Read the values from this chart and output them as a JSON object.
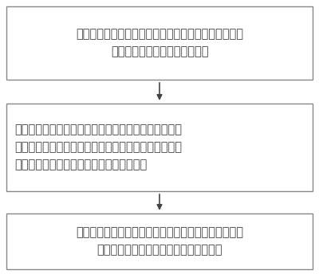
{
  "box1_lines": [
    "利用热路法计算稳态下电缆导体温度的计算值与电缆各",
    "层结构材料的导热系数的关系式"
  ],
  "box2_lines": [
    "利用灵敏度原理计算电缆各层结构材料的导热系数与相",
    "应的灵敏度的函数关系，并根据所述函数关系计算电缆",
    "各层结构材料的导热系数所对应的灵敏度值"
  ],
  "box3_lines": [
    "根据所述灵敏度值对选取的导热系数值进行调整，再根",
    "据调整后的导热系数值计算电缆导体温度"
  ],
  "box_color": "#ffffff",
  "box_edge_color": "#888888",
  "text_color": "#444444",
  "arrow_color": "#444444",
  "bg_color": "#ffffff",
  "font_size": 10.5,
  "fig_width": 4.0,
  "fig_height": 3.44
}
